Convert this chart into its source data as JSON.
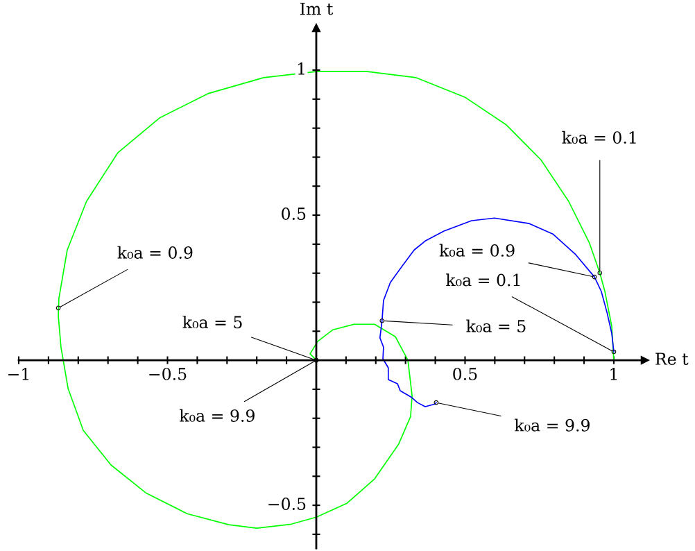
{
  "chart_data": {
    "type": "line",
    "xlabel": "Re t",
    "ylabel": "Im t",
    "xlim": [
      -1,
      1.105
    ],
    "ylim": [
      -0.648,
      1.146
    ],
    "xticks": [
      {
        "value": -1,
        "label": "−1"
      },
      {
        "value": -0.9,
        "label": null
      },
      {
        "value": -0.8,
        "label": null
      },
      {
        "value": -0.7,
        "label": null
      },
      {
        "value": -0.6,
        "label": null
      },
      {
        "value": -0.5,
        "label": "−0.5"
      },
      {
        "value": -0.4,
        "label": null
      },
      {
        "value": -0.3,
        "label": null
      },
      {
        "value": -0.2,
        "label": null
      },
      {
        "value": -0.1,
        "label": null
      },
      {
        "value": 0.1,
        "label": null
      },
      {
        "value": 0.2,
        "label": null
      },
      {
        "value": 0.3,
        "label": null
      },
      {
        "value": 0.4,
        "label": null
      },
      {
        "value": 0.5,
        "label": "0.5"
      },
      {
        "value": 0.6,
        "label": null
      },
      {
        "value": 0.7,
        "label": null
      },
      {
        "value": 0.8,
        "label": null
      },
      {
        "value": 0.9,
        "label": null
      },
      {
        "value": 1,
        "label": "1"
      }
    ],
    "yticks": [
      {
        "value": -0.6,
        "label": null
      },
      {
        "value": -0.5,
        "label": "−0.5"
      },
      {
        "value": -0.4,
        "label": null
      },
      {
        "value": -0.3,
        "label": null
      },
      {
        "value": -0.2,
        "label": null
      },
      {
        "value": -0.1,
        "label": null
      },
      {
        "value": 0.1,
        "label": null
      },
      {
        "value": 0.2,
        "label": null
      },
      {
        "value": 0.3,
        "label": null
      },
      {
        "value": 0.4,
        "label": null
      },
      {
        "value": 0.5,
        "label": "0.5"
      },
      {
        "value": 0.6,
        "label": null
      },
      {
        "value": 0.7,
        "label": null
      },
      {
        "value": 0.8,
        "label": null
      },
      {
        "value": 0.9,
        "label": null
      },
      {
        "value": 1,
        "label": "1"
      }
    ],
    "grid": false,
    "legend": false,
    "marker": "none",
    "line_style": "solid",
    "series": [
      {
        "color": "#00ff00",
        "x": [
          1.0,
          0.993,
          0.97,
          0.953,
          0.918,
          0.848,
          0.755,
          0.639,
          0.499,
          0.336,
          0.172,
          0,
          -0.177,
          -0.364,
          -0.527,
          -0.667,
          -0.772,
          -0.837,
          -0.865,
          -0.867,
          -0.858,
          -0.834,
          -0.783,
          -0.69,
          -0.573,
          -0.434,
          -0.294,
          -0.2,
          -0.084,
          0,
          0.103,
          0.196,
          0.277,
          0.317,
          0.322,
          0.308,
          0.266,
          0.196,
          0.126,
          0.056,
          0.005,
          -0.021,
          0
        ],
        "values": [
          0,
          0.117,
          0.237,
          0.301,
          0.404,
          0.548,
          0.691,
          0.811,
          0.907,
          0.974,
          0.995,
          0.995,
          0.974,
          0.919,
          0.835,
          0.715,
          0.548,
          0.38,
          0.213,
          0.153,
          0.045,
          -0.098,
          -0.242,
          -0.361,
          -0.457,
          -0.529,
          -0.567,
          -0.579,
          -0.565,
          -0.541,
          -0.493,
          -0.409,
          -0.289,
          -0.194,
          -0.122,
          0,
          0.081,
          0.124,
          0.124,
          0.105,
          0.065,
          0.022,
          0
        ]
      },
      {
        "color": "#0000ff",
        "x": [
          1.0,
          0.993,
          0.977,
          0.958,
          0.935,
          0.872,
          0.795,
          0.716,
          0.599,
          0.522,
          0.429,
          0.366,
          0.329,
          0.289,
          0.249,
          0.226,
          0.221,
          0.214,
          0.226,
          0.224,
          0.242,
          0.242,
          0.273,
          0.282,
          0.319,
          0.34,
          0.366,
          0.399,
          0.403
        ],
        "values": [
          0.029,
          0.093,
          0.165,
          0.237,
          0.287,
          0.364,
          0.435,
          0.471,
          0.49,
          0.481,
          0.445,
          0.411,
          0.38,
          0.325,
          0.268,
          0.206,
          0.136,
          0.077,
          0.045,
          0.005,
          -0.026,
          -0.067,
          -0.081,
          -0.105,
          -0.127,
          -0.146,
          -0.16,
          -0.151,
          -0.146
        ]
      }
    ],
    "annotations": [
      {
        "text": "k₀a = 0.1",
        "x": 0.953,
        "y": 0.301
      },
      {
        "text": "k₀a = 0.9",
        "x": -0.867,
        "y": 0.18
      },
      {
        "text": "k₀a = 5",
        "x": 0,
        "y": 0
      },
      {
        "text": "k₀a = 9.9",
        "x": 0,
        "y": 0
      },
      {
        "text": "k₀a = 0.1",
        "x": 1.0,
        "y": 0.029
      },
      {
        "text": "k₀a = 0.9",
        "x": 0.935,
        "y": 0.287
      },
      {
        "text": "k₀a = 5",
        "x": 0.221,
        "y": 0.136
      },
      {
        "text": "k₀a = 9.9",
        "x": 0.403,
        "y": -0.146
      }
    ]
  }
}
